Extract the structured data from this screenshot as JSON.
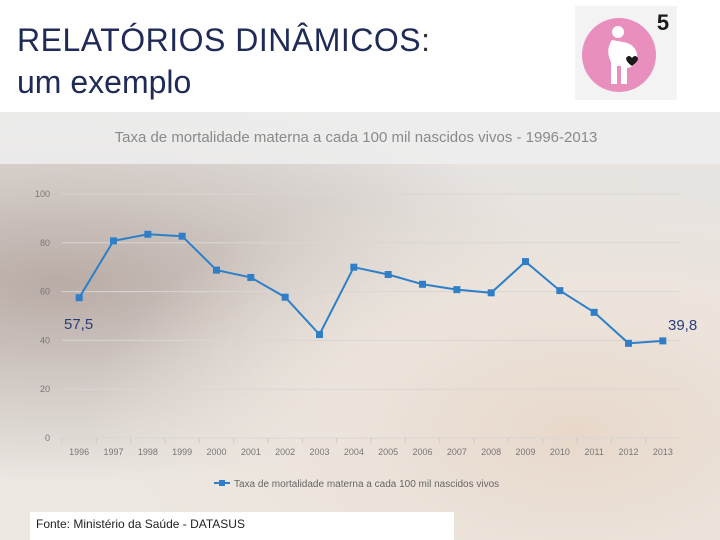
{
  "slide": {
    "title_line1": "RELATÓRIOS DINÂMICOS",
    "title_colon": ":",
    "title_line2": "um exemplo",
    "badge_number": "5",
    "badge_icon": "pregnant-woman-heart-icon",
    "source": "Fonte: Ministério da Saúde - DATASUS",
    "label_first": "57,5",
    "label_last": "39,8",
    "colors": {
      "title": "#1f2a57",
      "series": "#2f7fc8",
      "badge_pink": "#e98fbe"
    }
  },
  "chart_data": {
    "type": "line",
    "title": "Taxa de mortalidade materna a cada 100 mil nascidos vivos - 1996-2013",
    "x": [
      "1996",
      "1997",
      "1998",
      "1999",
      "2000",
      "2001",
      "2002",
      "2003",
      "2004",
      "2005",
      "2006",
      "2007",
      "2008",
      "2009",
      "2010",
      "2011",
      "2012",
      "2013"
    ],
    "series": [
      {
        "name": "Taxa de mortalidade materna a cada 100 mil nascidos vivos",
        "values": [
          57.5,
          80.8,
          83.5,
          82.7,
          68.8,
          65.8,
          57.7,
          42.4,
          70.0,
          67.0,
          63.0,
          60.8,
          59.5,
          72.3,
          60.4,
          51.5,
          38.8,
          39.8
        ]
      }
    ],
    "yticks": [
      "0",
      "20",
      "40",
      "60",
      "80",
      "100"
    ],
    "ylim": [
      0,
      100
    ],
    "grid": true,
    "legend": "bottom"
  }
}
